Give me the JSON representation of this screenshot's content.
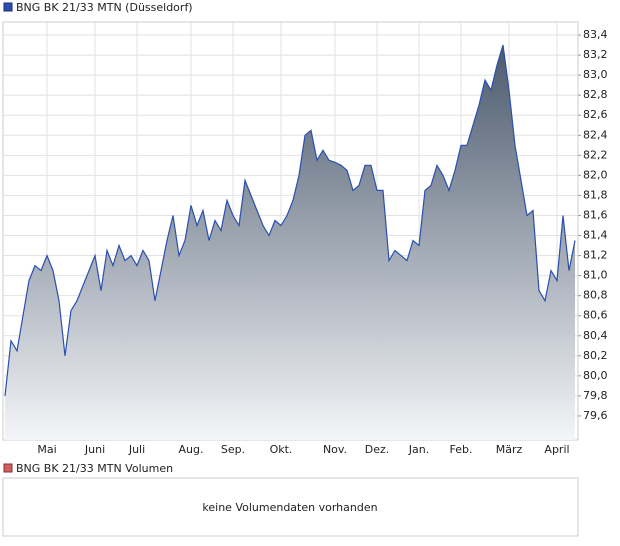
{
  "chart_data": {
    "type": "area",
    "title": "BNG BK 21/33 MTN (Düsseldorf)",
    "categories": [
      null,
      null,
      null,
      null,
      null,
      null,
      null,
      "Mai",
      null,
      null,
      null,
      null,
      null,
      null,
      null,
      "Juni",
      null,
      null,
      null,
      null,
      null,
      null,
      "Juli",
      null,
      null,
      null,
      null,
      null,
      null,
      null,
      null,
      "Aug.",
      null,
      null,
      null,
      null,
      null,
      null,
      "Sep.",
      null,
      null,
      null,
      null,
      null,
      null,
      null,
      "Okt.",
      null,
      null,
      null,
      null,
      null,
      null,
      null,
      null,
      "Nov.",
      null,
      null,
      null,
      null,
      null,
      null,
      "Dez.",
      null,
      null,
      null,
      null,
      null,
      null,
      "Jan.",
      null,
      null,
      null,
      null,
      null,
      null,
      "Feb.",
      null,
      null,
      null,
      null,
      null,
      null,
      null,
      "März",
      null,
      null,
      null,
      null,
      null,
      null,
      null,
      "April",
      null,
      null,
      null
    ],
    "series": [
      {
        "name": "BNG BK 21/33 MTN (Düsseldorf)",
        "color": "#2a4fb0",
        "values": [
          79.8,
          80.35,
          80.25,
          80.6,
          80.95,
          81.1,
          81.05,
          81.2,
          81.05,
          80.75,
          80.2,
          80.65,
          80.75,
          80.9,
          81.05,
          81.2,
          80.85,
          81.25,
          81.1,
          81.3,
          81.15,
          81.2,
          81.1,
          81.25,
          81.15,
          80.75,
          81.05,
          81.35,
          81.6,
          81.2,
          81.35,
          81.7,
          81.5,
          81.65,
          81.35,
          81.55,
          81.45,
          81.75,
          81.6,
          81.5,
          81.95,
          81.8,
          81.65,
          81.5,
          81.4,
          81.55,
          81.5,
          81.6,
          81.75,
          82.0,
          82.4,
          82.45,
          82.15,
          82.25,
          82.15,
          82.13,
          82.1,
          82.05,
          81.85,
          81.9,
          82.1,
          82.1,
          81.85,
          81.85,
          81.15,
          81.25,
          81.2,
          81.15,
          81.35,
          81.3,
          81.85,
          81.9,
          82.1,
          82.0,
          81.85,
          82.05,
          82.3,
          82.3,
          82.5,
          82.7,
          82.95,
          82.85,
          83.1,
          83.3,
          82.85,
          82.3,
          81.95,
          81.6,
          81.65,
          80.85,
          80.75,
          81.05,
          80.95,
          81.6,
          81.05,
          81.35
        ]
      }
    ],
    "ylim": [
      79.36,
      83.53
    ],
    "yticks": [
      {
        "value": 79.6,
        "label": "79,6"
      },
      {
        "value": 79.8,
        "label": "79,8"
      },
      {
        "value": 80.0,
        "label": "80,0"
      },
      {
        "value": 80.2,
        "label": "80,2"
      },
      {
        "value": 80.4,
        "label": "80,4"
      },
      {
        "value": 80.6,
        "label": "80,6"
      },
      {
        "value": 80.8,
        "label": "80,8"
      },
      {
        "value": 81.0,
        "label": "81,0"
      },
      {
        "value": 81.2,
        "label": "81,2"
      },
      {
        "value": 81.4,
        "label": "81,4"
      },
      {
        "value": 81.6,
        "label": "81,6"
      },
      {
        "value": 81.8,
        "label": "81,8"
      },
      {
        "value": 82.0,
        "label": "82,0"
      },
      {
        "value": 82.2,
        "label": "82,2"
      },
      {
        "value": 82.4,
        "label": "82,4"
      },
      {
        "value": 82.6,
        "label": "82,6"
      },
      {
        "value": 82.8,
        "label": "82,8"
      },
      {
        "value": 83.0,
        "label": "83,0"
      },
      {
        "value": 83.2,
        "label": "83,2"
      },
      {
        "value": 83.4,
        "label": "83,4"
      }
    ],
    "grid": true
  },
  "volume_panel": {
    "legend": "BNG BK 21/33 MTN Volumen",
    "message": "keine Volumendaten vorhanden"
  }
}
